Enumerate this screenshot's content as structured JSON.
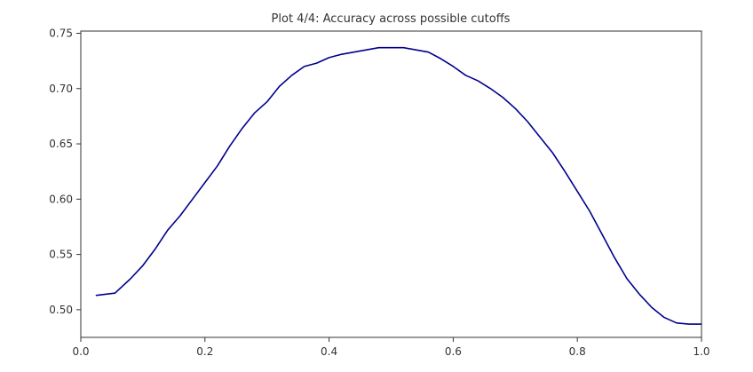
{
  "chart_data": {
    "type": "line",
    "title": "Plot 4/4: Accuracy across possible cutoffs",
    "xlabel": "",
    "ylabel": "",
    "xlim": [
      0.0,
      1.0
    ],
    "ylim": [
      0.475,
      0.752
    ],
    "grid": false,
    "x_ticks": [
      0.0,
      0.2,
      0.4,
      0.6,
      0.8,
      1.0
    ],
    "x_tick_labels": [
      "0.0",
      "0.2",
      "0.4",
      "0.6",
      "0.8",
      "1.0"
    ],
    "y_ticks": [
      0.5,
      0.55,
      0.6,
      0.65,
      0.7,
      0.75
    ],
    "y_tick_labels": [
      "0.50",
      "0.55",
      "0.60",
      "0.65",
      "0.70",
      "0.75"
    ],
    "series": [
      {
        "name": "accuracy",
        "color": "#00008b",
        "x": [
          0.025,
          0.055,
          0.08,
          0.1,
          0.12,
          0.14,
          0.16,
          0.18,
          0.2,
          0.22,
          0.24,
          0.26,
          0.28,
          0.3,
          0.32,
          0.34,
          0.36,
          0.38,
          0.4,
          0.42,
          0.44,
          0.46,
          0.48,
          0.5,
          0.52,
          0.54,
          0.56,
          0.58,
          0.6,
          0.62,
          0.64,
          0.66,
          0.68,
          0.7,
          0.72,
          0.74,
          0.76,
          0.78,
          0.8,
          0.82,
          0.84,
          0.86,
          0.88,
          0.9,
          0.92,
          0.94,
          0.96,
          0.98,
          1.0
        ],
        "y": [
          0.513,
          0.515,
          0.528,
          0.54,
          0.555,
          0.572,
          0.585,
          0.6,
          0.615,
          0.63,
          0.648,
          0.664,
          0.678,
          0.688,
          0.702,
          0.712,
          0.72,
          0.723,
          0.728,
          0.731,
          0.733,
          0.735,
          0.737,
          0.737,
          0.737,
          0.735,
          0.733,
          0.727,
          0.72,
          0.712,
          0.707,
          0.7,
          0.692,
          0.682,
          0.67,
          0.656,
          0.642,
          0.625,
          0.607,
          0.589,
          0.568,
          0.547,
          0.528,
          0.514,
          0.502,
          0.493,
          0.488,
          0.487,
          0.487
        ]
      }
    ]
  }
}
